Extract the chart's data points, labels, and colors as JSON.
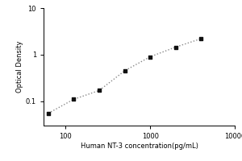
{
  "x_data": [
    62.5,
    125,
    250,
    500,
    1000,
    2000,
    4000
  ],
  "y_data": [
    0.055,
    0.11,
    0.17,
    0.45,
    0.9,
    1.45,
    2.2
  ],
  "xlabel": "Human NT-3 concentration(pg/mL)",
  "ylabel": "Optical Density",
  "xlim": [
    55,
    9000
  ],
  "ylim": [
    0.03,
    10
  ],
  "x_ticks": [
    100,
    1000,
    10000
  ],
  "x_tick_labels": [
    "100",
    "1000",
    "10000"
  ],
  "y_ticks": [
    0.1,
    1,
    10
  ],
  "y_tick_labels": [
    "0.1",
    "1",
    "10"
  ],
  "line_color": "#888888",
  "marker_color": "#111111",
  "background_color": "#ffffff",
  "label_fontsize": 6,
  "tick_fontsize": 6
}
